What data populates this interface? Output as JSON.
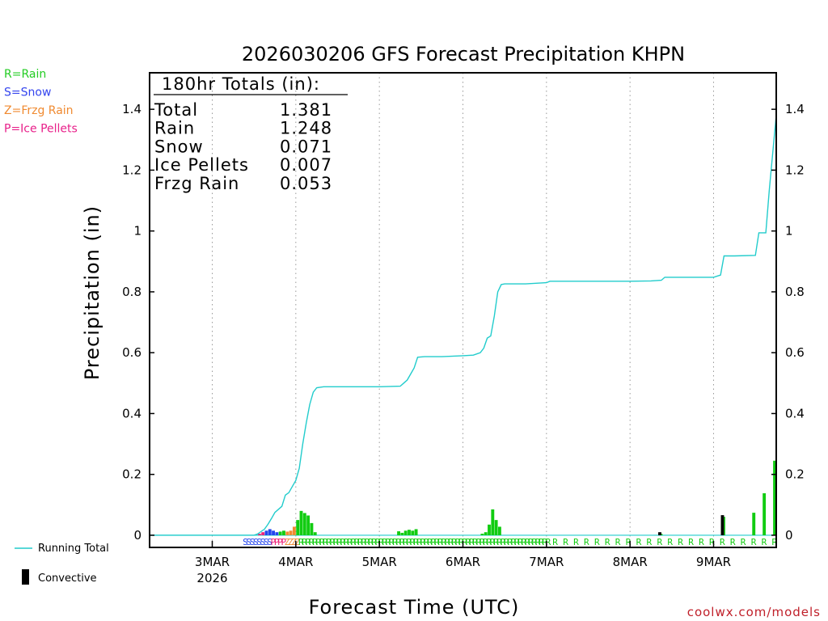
{
  "chart_data": {
    "type": "bar",
    "title": "2026030206 GFS Forecast Precipitation KHPN",
    "xlabel": "Forecast Time (UTC)",
    "ylabel": "Precipitation (in)",
    "ylim": [
      -0.04,
      1.52
    ],
    "yticks": [
      0,
      0.2,
      0.4,
      0.6,
      0.8,
      1,
      1.2,
      1.4
    ],
    "ytick_labels": [
      "0",
      "0.2",
      "0.4",
      "0.6",
      "0.8",
      "1",
      "1.2",
      "1.4"
    ],
    "xlim_hours": [
      0,
      180
    ],
    "xticks": [
      {
        "hour": 18,
        "label": "3MAR",
        "sublabel": "2026"
      },
      {
        "hour": 42,
        "label": "4MAR",
        "sublabel": ""
      },
      {
        "hour": 66,
        "label": "5MAR",
        "sublabel": ""
      },
      {
        "hour": 90,
        "label": "6MAR",
        "sublabel": ""
      },
      {
        "hour": 114,
        "label": "7MAR",
        "sublabel": ""
      },
      {
        "hour": 138,
        "label": "8MAR",
        "sublabel": ""
      },
      {
        "hour": 162,
        "label": "9MAR",
        "sublabel": ""
      }
    ],
    "totals_box": {
      "header": "180hr Totals (in):",
      "rows": [
        {
          "label": "Total",
          "value": "1.381"
        },
        {
          "label": "Rain",
          "value": "1.248"
        },
        {
          "label": "Snow",
          "value": "0.071"
        },
        {
          "label": "Ice Pellets",
          "value": "0.007"
        },
        {
          "label": "Frzg Rain",
          "value": "0.053"
        }
      ]
    },
    "type_legend": [
      {
        "text": "R=Rain",
        "color": "#22cc22"
      },
      {
        "text": "S=Snow",
        "color": "#3344ee"
      },
      {
        "text": "Z=Frzg Rain",
        "color": "#f08a30"
      },
      {
        "text": "P=Ice Pellets",
        "color": "#e8208a"
      }
    ],
    "colors": {
      "rain": "#11cc11",
      "snow": "#2244ee",
      "frzg_rain": "#f08a30",
      "ice_pellets": "#ee2277",
      "running_total": "#22cccc",
      "convective": "#000000"
    },
    "running_total_label": "Running Total",
    "convective_label": "Convective",
    "credit": "coolwx.com/models",
    "bars": [
      {
        "hour": 32,
        "value": 0.005,
        "type": "ice_pellets"
      },
      {
        "hour": 33,
        "value": 0.01,
        "type": "ice_pellets"
      },
      {
        "hour": 34,
        "value": 0.015,
        "type": "snow"
      },
      {
        "hour": 35,
        "value": 0.02,
        "type": "snow"
      },
      {
        "hour": 36,
        "value": 0.015,
        "type": "snow"
      },
      {
        "hour": 37,
        "value": 0.01,
        "type": "snow"
      },
      {
        "hour": 38,
        "value": 0.012,
        "type": "rain"
      },
      {
        "hour": 39,
        "value": 0.015,
        "type": "rain"
      },
      {
        "hour": 40,
        "value": 0.012,
        "type": "frzg_rain"
      },
      {
        "hour": 41,
        "value": 0.015,
        "type": "frzg_rain"
      },
      {
        "hour": 42,
        "value": 0.028,
        "type": "frzg_rain"
      },
      {
        "hour": 43,
        "value": 0.05,
        "type": "rain"
      },
      {
        "hour": 44,
        "value": 0.08,
        "type": "rain"
      },
      {
        "hour": 45,
        "value": 0.073,
        "type": "rain"
      },
      {
        "hour": 46,
        "value": 0.065,
        "type": "rain"
      },
      {
        "hour": 47,
        "value": 0.04,
        "type": "rain"
      },
      {
        "hour": 48,
        "value": 0.01,
        "type": "rain"
      },
      {
        "hour": 72,
        "value": 0.013,
        "type": "rain"
      },
      {
        "hour": 73,
        "value": 0.008,
        "type": "rain"
      },
      {
        "hour": 74,
        "value": 0.015,
        "type": "rain"
      },
      {
        "hour": 75,
        "value": 0.018,
        "type": "rain"
      },
      {
        "hour": 76,
        "value": 0.015,
        "type": "rain"
      },
      {
        "hour": 77,
        "value": 0.02,
        "type": "rain"
      },
      {
        "hour": 96,
        "value": 0.005,
        "type": "rain"
      },
      {
        "hour": 97,
        "value": 0.01,
        "type": "rain"
      },
      {
        "hour": 98,
        "value": 0.035,
        "type": "rain"
      },
      {
        "hour": 99,
        "value": 0.085,
        "type": "rain"
      },
      {
        "hour": 100,
        "value": 0.05,
        "type": "rain"
      },
      {
        "hour": 101,
        "value": 0.028,
        "type": "rain"
      },
      {
        "hour": 147,
        "value": 0.01,
        "type": "rain",
        "convective": true
      },
      {
        "hour": 165,
        "value": 0.066,
        "type": "rain",
        "convective": true
      },
      {
        "hour": 174,
        "value": 0.074,
        "type": "rain"
      },
      {
        "hour": 177,
        "value": 0.138,
        "type": "rain"
      },
      {
        "hour": 180,
        "value": 0.245,
        "type": "rain"
      }
    ],
    "series": [
      {
        "name": "Running Total",
        "x": [
          0,
          30,
          31,
          33,
          34,
          35,
          36,
          38,
          39,
          40,
          41,
          42,
          43,
          44,
          45,
          46,
          47,
          48,
          50,
          54,
          60,
          66,
          72,
          73,
          74,
          75,
          76,
          77,
          79,
          84,
          90,
          93,
          95,
          96,
          97,
          98,
          99,
          100,
          101,
          102,
          104,
          108,
          114,
          115,
          120,
          126,
          132,
          138,
          144,
          147,
          148,
          156,
          162,
          164,
          165,
          168,
          174,
          175,
          177,
          178,
          180
        ],
        "values": [
          0,
          0,
          0.004,
          0.02,
          0.036,
          0.055,
          0.075,
          0.095,
          0.132,
          0.14,
          0.16,
          0.18,
          0.22,
          0.3,
          0.37,
          0.43,
          0.47,
          0.485,
          0.488,
          0.488,
          0.488,
          0.488,
          0.49,
          0.5,
          0.51,
          0.53,
          0.55,
          0.585,
          0.587,
          0.587,
          0.59,
          0.592,
          0.6,
          0.615,
          0.648,
          0.655,
          0.72,
          0.8,
          0.824,
          0.826,
          0.826,
          0.826,
          0.83,
          0.835,
          0.835,
          0.835,
          0.835,
          0.835,
          0.836,
          0.838,
          0.848,
          0.848,
          0.848,
          0.855,
          0.918,
          0.918,
          0.92,
          0.994,
          0.994,
          1.135,
          1.381
        ]
      }
    ],
    "precip_type_marks": [
      {
        "from": 27,
        "to": 35,
        "letter": "S",
        "type": "snow"
      },
      {
        "from": 35,
        "to": 39,
        "letter": "P",
        "type": "ice_pellets"
      },
      {
        "from": 39,
        "to": 43,
        "letter": "Z",
        "type": "frzg_rain"
      },
      {
        "from": 43,
        "to": 115,
        "letter": "R",
        "type": "rain"
      }
    ],
    "precip_type_marks_3h": [
      {
        "from": 115,
        "to": 180,
        "letter": "R",
        "type": "rain"
      }
    ]
  }
}
